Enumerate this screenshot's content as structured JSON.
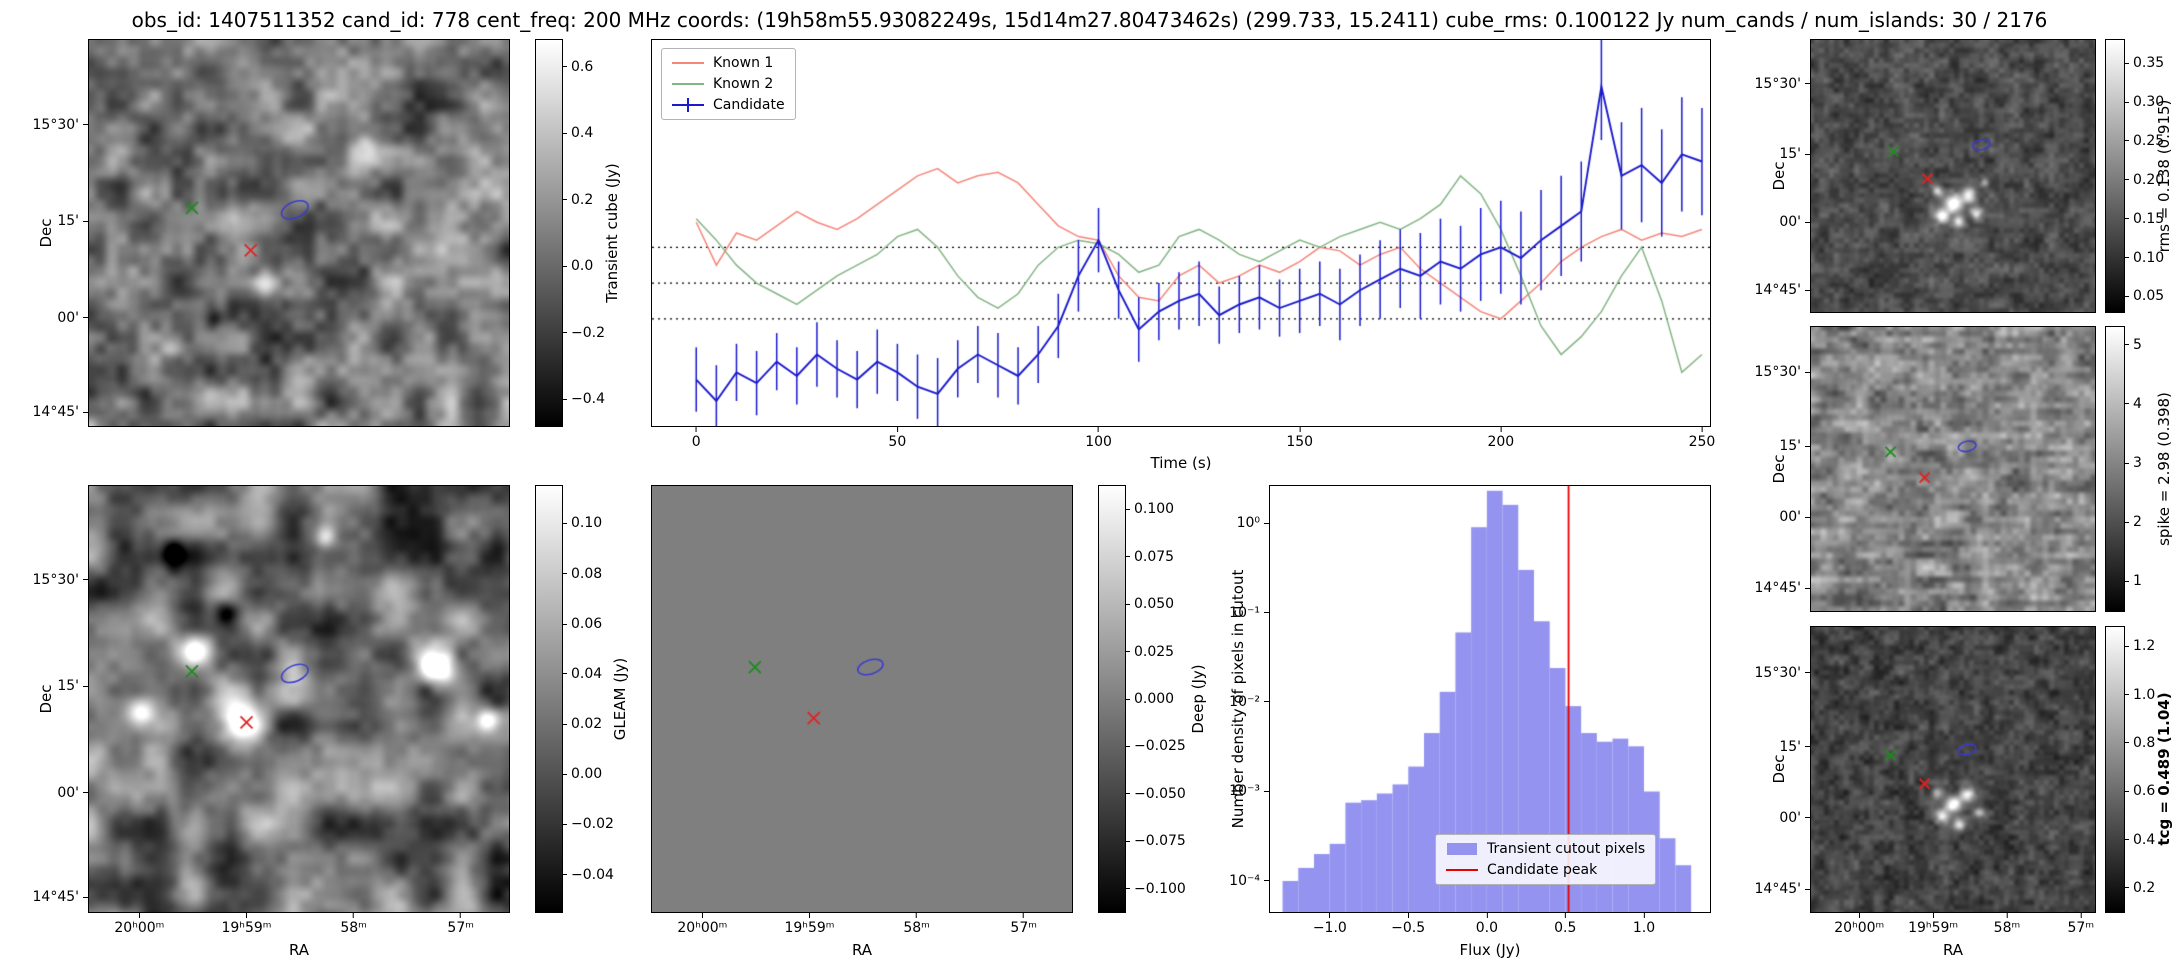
{
  "title": "obs_id: 1407511352 cand_id: 778 cent_freq: 200 MHz coords: (19h58m55.93082249s, 15d14m27.80473462s) (299.733, 15.2411) cube_rms: 0.100122 Jy num_cands / num_islands: 30 / 2176",
  "axes": {
    "dec_label": "Dec",
    "ra_label": "RA",
    "dec_ticks": [
      "15°30'",
      "15'",
      "00'",
      "14°45'"
    ],
    "ra_ticks": [
      "20ʰ00ᵐ",
      "19ʰ59ᵐ",
      "58ᵐ",
      "57ᵐ"
    ]
  },
  "overlay": {
    "green_x_color": "#1f8b1f",
    "red_x_color": "#e32222",
    "contour_color": "#3a3ad1"
  },
  "panels": {
    "transient_cube": {
      "cbar_label": "Transient cube (Jy)",
      "cbar_ticks": [
        "0.6",
        "0.4",
        "0.2",
        "0.0",
        "−0.2",
        "−0.4"
      ]
    },
    "gleam": {
      "cbar_label": "GLEAM (Jy)",
      "cbar_ticks": [
        "0.10",
        "0.08",
        "0.06",
        "0.04",
        "0.02",
        "0.00",
        "−0.02",
        "−0.04"
      ]
    },
    "deep": {
      "cbar_label": "Deep (Jy)",
      "cbar_ticks": [
        "0.100",
        "0.075",
        "0.050",
        "0.025",
        "0.000",
        "−0.025",
        "−0.050",
        "−0.075",
        "−0.100"
      ]
    },
    "rms": {
      "cbar_label": "rms = 0.138 (0.915)",
      "cbar_ticks": [
        "0.35",
        "0.30",
        "0.25",
        "0.20",
        "0.15",
        "0.10",
        "0.05"
      ]
    },
    "spike": {
      "cbar_label": "spike = 2.98 (0.398)",
      "cbar_ticks": [
        "5",
        "4",
        "3",
        "2",
        "1"
      ]
    },
    "tcg": {
      "cbar_label": "tcg = 0.489 (1.04)",
      "cbar_ticks": [
        "1.2",
        "1.0",
        "0.8",
        "0.6",
        "0.4",
        "0.2"
      ]
    }
  },
  "chart_data": [
    {
      "type": "line",
      "title": "",
      "xlabel": "Time (s)",
      "ylabel": "Transient cube (Jy)",
      "xlim": [
        -11,
        252
      ],
      "ylim": [
        -0.4,
        0.68
      ],
      "grid": false,
      "legend_position": "upper left",
      "hlines": [
        0.1,
        0.0,
        -0.1
      ],
      "xticks": [
        0,
        50,
        100,
        150,
        200,
        250
      ],
      "x": [
        0,
        5,
        10,
        15,
        20,
        25,
        30,
        35,
        40,
        45,
        50,
        55,
        60,
        65,
        70,
        75,
        80,
        85,
        90,
        95,
        100,
        105,
        110,
        115,
        120,
        125,
        130,
        135,
        140,
        145,
        150,
        155,
        160,
        165,
        170,
        175,
        180,
        185,
        190,
        195,
        200,
        205,
        210,
        215,
        220,
        225,
        230,
        235,
        240,
        245,
        250
      ],
      "series": [
        {
          "name": "Known 1",
          "color": "#f4877b",
          "values": [
            0.17,
            0.05,
            0.14,
            0.12,
            0.16,
            0.2,
            0.17,
            0.15,
            0.18,
            0.22,
            0.26,
            0.3,
            0.32,
            0.28,
            0.3,
            0.31,
            0.28,
            0.22,
            0.16,
            0.13,
            0.12,
            0.02,
            -0.04,
            -0.05,
            0.02,
            0.05,
            0.0,
            0.02,
            0.05,
            0.03,
            0.06,
            0.1,
            0.09,
            0.05,
            0.08,
            0.1,
            0.04,
            0.0,
            -0.04,
            -0.08,
            -0.1,
            -0.05,
            0.0,
            0.06,
            0.1,
            0.13,
            0.15,
            0.12,
            0.14,
            0.13,
            0.15
          ]
        },
        {
          "name": "Known 2",
          "color": "#85b585",
          "values": [
            0.18,
            0.12,
            0.05,
            0.0,
            -0.03,
            -0.06,
            -0.02,
            0.02,
            0.05,
            0.08,
            0.13,
            0.15,
            0.1,
            0.02,
            -0.04,
            -0.07,
            -0.03,
            0.05,
            0.1,
            0.12,
            0.11,
            0.08,
            0.03,
            0.05,
            0.13,
            0.15,
            0.12,
            0.08,
            0.06,
            0.09,
            0.12,
            0.1,
            0.13,
            0.15,
            0.17,
            0.15,
            0.18,
            0.22,
            0.3,
            0.25,
            0.15,
            0.02,
            -0.12,
            -0.2,
            -0.15,
            -0.08,
            0.02,
            0.1,
            -0.05,
            -0.25,
            -0.2
          ]
        },
        {
          "name": "Candidate",
          "color": "#1a1acd",
          "values": [
            -0.27,
            -0.33,
            -0.25,
            -0.28,
            -0.22,
            -0.26,
            -0.2,
            -0.24,
            -0.27,
            -0.22,
            -0.25,
            -0.29,
            -0.31,
            -0.24,
            -0.2,
            -0.23,
            -0.26,
            -0.2,
            -0.12,
            0.02,
            0.12,
            -0.02,
            -0.13,
            -0.08,
            -0.05,
            -0.03,
            -0.09,
            -0.06,
            -0.04,
            -0.07,
            -0.05,
            -0.03,
            -0.06,
            -0.02,
            0.01,
            0.04,
            0.02,
            0.06,
            0.04,
            0.08,
            0.1,
            0.07,
            0.12,
            0.16,
            0.2,
            0.55,
            0.3,
            0.33,
            0.28,
            0.36,
            0.34
          ],
          "errors": [
            0.09,
            0.1,
            0.08,
            0.09,
            0.08,
            0.08,
            0.09,
            0.08,
            0.08,
            0.09,
            0.08,
            0.09,
            0.1,
            0.08,
            0.08,
            0.09,
            0.08,
            0.08,
            0.09,
            0.1,
            0.09,
            0.08,
            0.09,
            0.08,
            0.08,
            0.09,
            0.08,
            0.08,
            0.09,
            0.08,
            0.09,
            0.09,
            0.1,
            0.1,
            0.11,
            0.11,
            0.12,
            0.12,
            0.12,
            0.13,
            0.13,
            0.13,
            0.14,
            0.14,
            0.14,
            0.15,
            0.15,
            0.16,
            0.15,
            0.16,
            0.15
          ]
        }
      ]
    },
    {
      "type": "bar",
      "xlabel": "Flux (Jy)",
      "ylabel": "Number density of pixels in cutout",
      "yscale": "log",
      "xlim": [
        -1.38,
        1.42
      ],
      "ylim": [
        4.5e-05,
        2.6
      ],
      "bar_color": "#9494f0",
      "bars_label": "Transient cutout pixels",
      "vline": {
        "x": 0.52,
        "color": "#e60000",
        "label": "Candidate peak"
      },
      "bin_width": 0.1,
      "bin_centers": [
        -1.25,
        -1.15,
        -1.05,
        -0.95,
        -0.85,
        -0.75,
        -0.65,
        -0.55,
        -0.45,
        -0.35,
        -0.25,
        -0.15,
        -0.05,
        0.05,
        0.15,
        0.25,
        0.35,
        0.45,
        0.55,
        0.65,
        0.75,
        0.85,
        0.95,
        1.05,
        1.15,
        1.25
      ],
      "values": [
        0.0001,
        0.00014,
        0.0002,
        0.00026,
        0.00075,
        0.0008,
        0.00095,
        0.0012,
        0.0019,
        0.0045,
        0.013,
        0.06,
        0.9,
        2.3,
        1.6,
        0.3,
        0.08,
        0.024,
        0.009,
        0.0045,
        0.0036,
        0.0039,
        0.0032,
        0.001,
        0.0003,
        0.00015
      ],
      "xtick_labels": [
        "−1.0",
        "−0.5",
        "0.0",
        "0.5",
        "1.0"
      ],
      "ytick_labels": [
        "10⁰",
        "10⁻¹",
        "10⁻²",
        "10⁻³",
        "10⁻⁴"
      ]
    }
  ]
}
